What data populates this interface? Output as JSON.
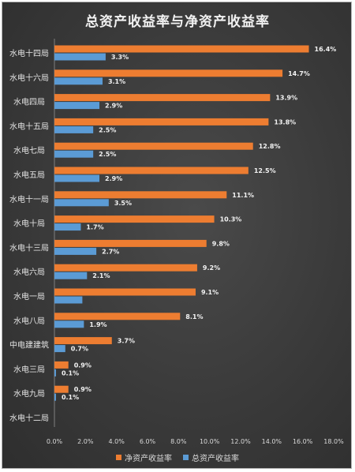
{
  "chart_data": {
    "type": "bar",
    "orientation": "horizontal",
    "title": "总资产收益率与净资产收益率",
    "categories": [
      "水电十四局",
      "水电十六局",
      "水电四局",
      "水电十五局",
      "水电七局",
      "水电五局",
      "水电十一局",
      "水电十局",
      "水电十三局",
      "水电六局",
      "水电一局",
      "水电八局",
      "中电建建筑",
      "水电三局",
      "水电九局",
      "水电十二局"
    ],
    "series": [
      {
        "name": "净资产收益率",
        "color": "#ed7d31",
        "values": [
          16.4,
          14.7,
          13.9,
          13.8,
          12.8,
          12.5,
          11.1,
          10.3,
          9.8,
          9.2,
          9.1,
          8.1,
          3.7,
          0.9,
          0.9,
          0
        ],
        "labels": [
          "16.4%",
          "14.7%",
          "13.9%",
          "13.8%",
          "12.8%",
          "12.5%",
          "11.1%",
          "10.3%",
          "9.8%",
          "9.2%",
          "9.1%",
          "8.1%",
          "3.7%",
          "0.9%",
          "0.9%",
          ""
        ]
      },
      {
        "name": "总资产收益率",
        "color": "#5b9bd5",
        "values": [
          3.3,
          3.1,
          2.9,
          2.5,
          2.5,
          2.9,
          3.5,
          1.7,
          2.7,
          2.1,
          1.8,
          1.9,
          0.7,
          0.1,
          0.1,
          0
        ],
        "labels": [
          "3.3%",
          "3.1%",
          "2.9%",
          "2.5%",
          "2.5%",
          "2.9%",
          "3.5%",
          "1.7%",
          "2.7%",
          "2.1%",
          "",
          "1.9%",
          "0.7%",
          "0.1%",
          "0.1%",
          ""
        ]
      }
    ],
    "xlim": [
      0,
      18
    ],
    "xticks": [
      "0.0%",
      "2.0%",
      "4.0%",
      "6.0%",
      "8.0%",
      "10.0%",
      "12.0%",
      "14.0%",
      "16.0%",
      "18.0%"
    ],
    "grid": false,
    "legend_position": "bottom"
  }
}
